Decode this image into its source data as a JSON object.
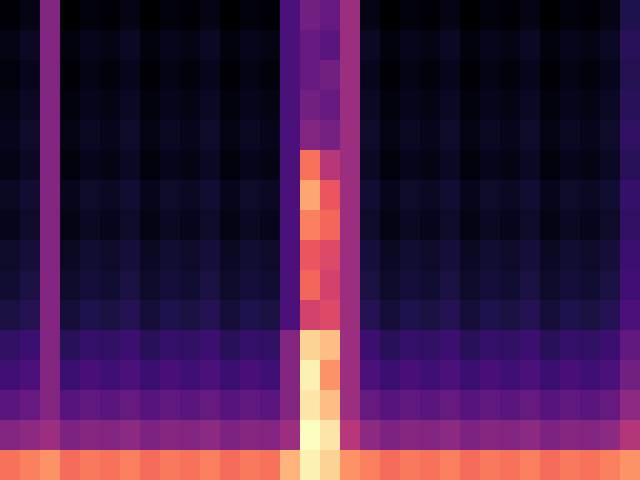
{
  "chart_data": {
    "type": "heatmap",
    "color": "magma",
    "tick_labels": false,
    "cells": [
      [
        0.18,
        0.2,
        0.45,
        0.17,
        0.19,
        0.18,
        0.2,
        0.17,
        0.19,
        0.18,
        0.2,
        0.17,
        0.19,
        0.18,
        0.35,
        0.42,
        0.4,
        0.5,
        0.2,
        0.17,
        0.19,
        0.18,
        0.2,
        0.17,
        0.19,
        0.18,
        0.2,
        0.17,
        0.19,
        0.18,
        0.2,
        0.27
      ],
      [
        0.2,
        0.22,
        0.45,
        0.19,
        0.21,
        0.2,
        0.22,
        0.19,
        0.21,
        0.2,
        0.22,
        0.19,
        0.21,
        0.2,
        0.35,
        0.4,
        0.38,
        0.5,
        0.22,
        0.19,
        0.21,
        0.2,
        0.22,
        0.19,
        0.21,
        0.2,
        0.22,
        0.19,
        0.21,
        0.2,
        0.22,
        0.29
      ],
      [
        0.19,
        0.21,
        0.45,
        0.18,
        0.2,
        0.19,
        0.21,
        0.18,
        0.2,
        0.19,
        0.21,
        0.18,
        0.2,
        0.19,
        0.35,
        0.4,
        0.42,
        0.5,
        0.21,
        0.18,
        0.2,
        0.19,
        0.21,
        0.18,
        0.2,
        0.19,
        0.21,
        0.18,
        0.2,
        0.19,
        0.21,
        0.28
      ],
      [
        0.2,
        0.22,
        0.45,
        0.19,
        0.21,
        0.2,
        0.22,
        0.19,
        0.21,
        0.2,
        0.22,
        0.19,
        0.21,
        0.2,
        0.35,
        0.42,
        0.4,
        0.5,
        0.22,
        0.19,
        0.21,
        0.2,
        0.22,
        0.19,
        0.21,
        0.2,
        0.22,
        0.19,
        0.21,
        0.2,
        0.22,
        0.29
      ],
      [
        0.21,
        0.23,
        0.45,
        0.2,
        0.22,
        0.21,
        0.23,
        0.2,
        0.22,
        0.21,
        0.23,
        0.2,
        0.22,
        0.21,
        0.35,
        0.45,
        0.43,
        0.5,
        0.23,
        0.2,
        0.22,
        0.21,
        0.23,
        0.2,
        0.22,
        0.21,
        0.23,
        0.2,
        0.22,
        0.21,
        0.23,
        0.3
      ],
      [
        0.2,
        0.22,
        0.45,
        0.19,
        0.21,
        0.2,
        0.22,
        0.19,
        0.21,
        0.2,
        0.22,
        0.19,
        0.21,
        0.2,
        0.35,
        0.7,
        0.55,
        0.5,
        0.22,
        0.19,
        0.21,
        0.2,
        0.22,
        0.19,
        0.21,
        0.2,
        0.22,
        0.19,
        0.21,
        0.2,
        0.22,
        0.29
      ],
      [
        0.22,
        0.24,
        0.45,
        0.21,
        0.23,
        0.22,
        0.24,
        0.21,
        0.23,
        0.22,
        0.24,
        0.21,
        0.23,
        0.22,
        0.35,
        0.78,
        0.65,
        0.5,
        0.24,
        0.21,
        0.23,
        0.22,
        0.24,
        0.21,
        0.23,
        0.22,
        0.24,
        0.21,
        0.23,
        0.22,
        0.24,
        0.31
      ],
      [
        0.21,
        0.23,
        0.45,
        0.2,
        0.22,
        0.21,
        0.23,
        0.2,
        0.22,
        0.21,
        0.23,
        0.2,
        0.22,
        0.21,
        0.35,
        0.72,
        0.68,
        0.5,
        0.23,
        0.2,
        0.22,
        0.21,
        0.23,
        0.2,
        0.22,
        0.21,
        0.23,
        0.2,
        0.22,
        0.21,
        0.23,
        0.3
      ],
      [
        0.23,
        0.25,
        0.45,
        0.22,
        0.24,
        0.23,
        0.25,
        0.22,
        0.24,
        0.23,
        0.25,
        0.22,
        0.24,
        0.23,
        0.35,
        0.65,
        0.62,
        0.5,
        0.25,
        0.22,
        0.24,
        0.23,
        0.25,
        0.22,
        0.24,
        0.23,
        0.25,
        0.22,
        0.24,
        0.23,
        0.25,
        0.32
      ],
      [
        0.24,
        0.26,
        0.45,
        0.23,
        0.25,
        0.24,
        0.26,
        0.23,
        0.25,
        0.24,
        0.26,
        0.23,
        0.25,
        0.24,
        0.35,
        0.68,
        0.6,
        0.5,
        0.26,
        0.23,
        0.25,
        0.24,
        0.26,
        0.23,
        0.25,
        0.24,
        0.26,
        0.23,
        0.25,
        0.24,
        0.26,
        0.33
      ],
      [
        0.26,
        0.28,
        0.45,
        0.25,
        0.27,
        0.26,
        0.28,
        0.25,
        0.27,
        0.26,
        0.28,
        0.25,
        0.27,
        0.26,
        0.35,
        0.6,
        0.62,
        0.5,
        0.28,
        0.25,
        0.27,
        0.26,
        0.28,
        0.25,
        0.27,
        0.26,
        0.28,
        0.25,
        0.27,
        0.26,
        0.28,
        0.35
      ],
      [
        0.3,
        0.32,
        0.45,
        0.29,
        0.31,
        0.3,
        0.32,
        0.29,
        0.31,
        0.3,
        0.32,
        0.29,
        0.31,
        0.3,
        0.45,
        0.85,
        0.82,
        0.5,
        0.32,
        0.29,
        0.31,
        0.3,
        0.32,
        0.29,
        0.31,
        0.3,
        0.32,
        0.29,
        0.31,
        0.3,
        0.32,
        0.39
      ],
      [
        0.33,
        0.35,
        0.45,
        0.32,
        0.34,
        0.33,
        0.35,
        0.32,
        0.34,
        0.33,
        0.35,
        0.32,
        0.34,
        0.33,
        0.45,
        0.9,
        0.75,
        0.5,
        0.35,
        0.32,
        0.34,
        0.33,
        0.35,
        0.32,
        0.34,
        0.33,
        0.35,
        0.32,
        0.34,
        0.33,
        0.35,
        0.42
      ],
      [
        0.38,
        0.4,
        0.45,
        0.37,
        0.39,
        0.38,
        0.4,
        0.37,
        0.39,
        0.38,
        0.4,
        0.37,
        0.39,
        0.38,
        0.45,
        0.88,
        0.82,
        0.5,
        0.4,
        0.37,
        0.39,
        0.38,
        0.4,
        0.37,
        0.39,
        0.38,
        0.4,
        0.37,
        0.39,
        0.38,
        0.4,
        0.47
      ],
      [
        0.45,
        0.47,
        0.5,
        0.44,
        0.46,
        0.45,
        0.47,
        0.44,
        0.46,
        0.45,
        0.47,
        0.44,
        0.46,
        0.45,
        0.5,
        0.92,
        0.88,
        0.55,
        0.47,
        0.44,
        0.46,
        0.45,
        0.47,
        0.44,
        0.46,
        0.45,
        0.47,
        0.44,
        0.46,
        0.45,
        0.47,
        0.54
      ],
      [
        0.7,
        0.72,
        0.75,
        0.69,
        0.71,
        0.7,
        0.72,
        0.69,
        0.71,
        0.7,
        0.72,
        0.69,
        0.71,
        0.7,
        0.8,
        0.9,
        0.85,
        0.75,
        0.72,
        0.69,
        0.71,
        0.7,
        0.72,
        0.69,
        0.71,
        0.7,
        0.72,
        0.69,
        0.71,
        0.7,
        0.72,
        0.75
      ]
    ]
  }
}
